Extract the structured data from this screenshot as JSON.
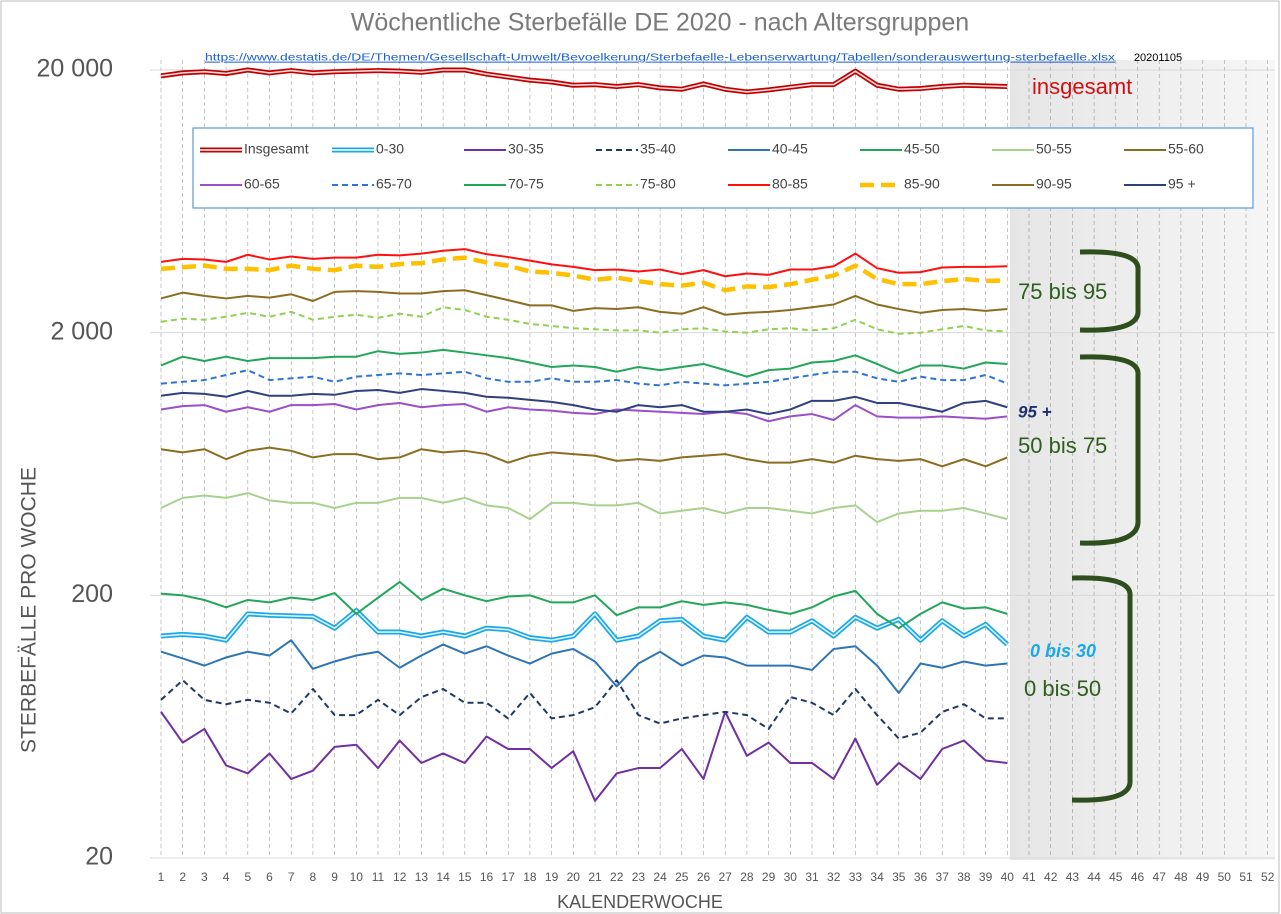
{
  "chart_data": {
    "type": "line",
    "title": "Wöchentliche Sterbefälle DE 2020 - nach Altersgruppen",
    "source": "https://www.destatis.de/DE/Themen/Gesellschaft-Umwelt/Bevoelkerung/Sterbefaelle-Lebenserwartung/Tabellen/sonderauswertung-sterbefaelle.xlsx",
    "date": "20201105",
    "x_label": "KALENDERWOCHE",
    "y_label": "STERBEFÄLLE PRO WOCHE",
    "log_scale": true,
    "grid": true,
    "ylim": [
      20,
      20000
    ],
    "yticks": [
      20,
      200,
      {
        "value": 2000,
        "label": "2 000"
      },
      {
        "value": 20000,
        "label": "20 000"
      }
    ],
    "categories": [
      1,
      2,
      3,
      4,
      5,
      6,
      7,
      8,
      9,
      10,
      11,
      12,
      13,
      14,
      15,
      16,
      17,
      18,
      19,
      20,
      21,
      22,
      23,
      24,
      25,
      26,
      27,
      28,
      29,
      30,
      31,
      32,
      33,
      34,
      35,
      36,
      37,
      38,
      39,
      40,
      41,
      42,
      43,
      44,
      45,
      46,
      47,
      48,
      49,
      50,
      51,
      52
    ],
    "annotations": [
      {
        "text": "insgesamt",
        "color": "#d01010"
      },
      {
        "text": "75 bis 95",
        "color": "#2e5e1e"
      },
      {
        "text": "95 +",
        "color": "#1f2f6f"
      },
      {
        "text": "50 bis 75",
        "color": "#2e5e1e"
      },
      {
        "text": "0 bis 30",
        "color": "#1aa8e8"
      },
      {
        "text": "0 bis 50",
        "color": "#2e5e1e"
      }
    ],
    "series": [
      {
        "name": "Insgesamt",
        "color": "#c00000",
        "double": true,
        "values": [
          19000,
          19500,
          19700,
          19400,
          20000,
          19500,
          19900,
          19500,
          19700,
          19800,
          19900,
          19800,
          19600,
          20000,
          20000,
          19300,
          18800,
          18300,
          18000,
          17500,
          17600,
          17300,
          17600,
          17100,
          16900,
          17700,
          16900,
          16500,
          16800,
          17200,
          17600,
          17600,
          19800,
          17500,
          16900,
          17000,
          17300,
          17500,
          17400,
          17300,
          null,
          null,
          null,
          null,
          null,
          null,
          null,
          null,
          null,
          null,
          null,
          null
        ]
      },
      {
        "name": "0-30",
        "color": "#1aa8e8",
        "double": true,
        "values": [
          140,
          142,
          140,
          135,
          170,
          168,
          167,
          166,
          150,
          175,
          145,
          145,
          140,
          145,
          140,
          150,
          148,
          138,
          135,
          140,
          170,
          135,
          140,
          160,
          162,
          140,
          135,
          165,
          145,
          145,
          160,
          140,
          165,
          150,
          162,
          135,
          160,
          140,
          155,
          130,
          null,
          null,
          null,
          null,
          null,
          null,
          null,
          null,
          null,
          null,
          null,
          null
        ]
      },
      {
        "name": "30-35",
        "color": "#7030a0",
        "values": [
          72,
          55,
          62,
          45,
          42,
          50,
          40,
          43,
          53,
          54,
          44,
          56,
          46,
          50,
          46,
          58,
          52,
          52,
          44,
          51,
          33,
          42,
          44,
          44,
          52,
          40,
          72,
          49,
          55,
          46,
          46,
          40,
          57,
          38,
          46,
          40,
          52,
          56,
          47,
          46,
          null,
          null,
          null,
          null,
          null,
          null,
          null,
          null,
          null,
          null,
          null,
          null
        ]
      },
      {
        "name": "35-40",
        "color": "#1f3864",
        "dashed": true,
        "values": [
          80,
          95,
          80,
          77,
          80,
          78,
          71,
          88,
          70,
          70,
          80,
          70,
          82,
          88,
          78,
          78,
          68,
          85,
          68,
          70,
          75,
          95,
          70,
          65,
          68,
          70,
          72,
          70,
          62,
          82,
          78,
          70,
          88,
          70,
          57,
          60,
          72,
          77,
          68,
          68,
          null,
          null,
          null,
          null,
          null,
          null,
          null,
          null,
          null,
          null,
          null,
          null
        ]
      },
      {
        "name": "40-45",
        "color": "#2e75b6",
        "values": [
          122,
          115,
          108,
          116,
          122,
          118,
          135,
          105,
          112,
          118,
          122,
          106,
          118,
          130,
          120,
          128,
          118,
          110,
          120,
          125,
          112,
          90,
          110,
          122,
          108,
          118,
          116,
          108,
          108,
          108,
          104,
          125,
          128,
          108,
          85,
          110,
          106,
          112,
          108,
          110,
          null,
          null,
          null,
          null,
          null,
          null,
          null,
          null,
          null,
          null,
          null,
          null
        ]
      },
      {
        "name": "45-50",
        "color": "#21a65a",
        "values": [
          203,
          200,
          192,
          180,
          192,
          188,
          196,
          192,
          204,
          170,
          196,
          225,
          192,
          212,
          200,
          190,
          198,
          200,
          188,
          188,
          200,
          168,
          180,
          180,
          190,
          184,
          188,
          184,
          176,
          170,
          180,
          198,
          208,
          170,
          150,
          170,
          188,
          178,
          180,
          170,
          null,
          null,
          null,
          null,
          null,
          null,
          null,
          null,
          null,
          null,
          null,
          null
        ]
      },
      {
        "name": "50-55",
        "color": "#a9d18e",
        "values": [
          430,
          470,
          480,
          470,
          490,
          460,
          450,
          450,
          430,
          450,
          450,
          470,
          470,
          450,
          470,
          440,
          430,
          390,
          450,
          450,
          440,
          440,
          450,
          410,
          420,
          430,
          410,
          430,
          430,
          420,
          410,
          430,
          440,
          380,
          410,
          420,
          420,
          430,
          410,
          390,
          null,
          null,
          null,
          null,
          null,
          null,
          null,
          null,
          null,
          null,
          null,
          null
        ]
      },
      {
        "name": "55-60",
        "color": "#8c6d1f",
        "values": [
          720,
          700,
          720,
          660,
          710,
          730,
          710,
          670,
          690,
          690,
          660,
          670,
          720,
          700,
          710,
          690,
          640,
          680,
          700,
          690,
          680,
          650,
          660,
          650,
          670,
          680,
          690,
          660,
          640,
          640,
          660,
          640,
          680,
          660,
          650,
          660,
          620,
          660,
          620,
          670,
          null,
          null,
          null,
          null,
          null,
          null,
          null,
          null,
          null,
          null,
          null,
          null
        ]
      },
      {
        "name": "60-65",
        "color": "#9b4fc8",
        "values": [
          1020,
          1050,
          1060,
          1000,
          1040,
          1000,
          1060,
          1060,
          1070,
          1020,
          1060,
          1080,
          1040,
          1060,
          1070,
          1000,
          1040,
          1020,
          1010,
          990,
          980,
          1020,
          1010,
          1000,
          990,
          980,
          1000,
          980,
          920,
          960,
          980,
          930,
          1060,
          960,
          950,
          950,
          960,
          950,
          940,
          960,
          null,
          null,
          null,
          null,
          null,
          null,
          null,
          null,
          null,
          null,
          null,
          null
        ]
      },
      {
        "name": "65-70",
        "color": "#2e75d6",
        "dashed": true,
        "values": [
          1280,
          1300,
          1320,
          1380,
          1440,
          1320,
          1340,
          1360,
          1300,
          1360,
          1380,
          1400,
          1380,
          1400,
          1420,
          1340,
          1300,
          1300,
          1340,
          1300,
          1300,
          1320,
          1280,
          1260,
          1300,
          1280,
          1260,
          1280,
          1300,
          1340,
          1380,
          1420,
          1420,
          1340,
          1300,
          1360,
          1320,
          1320,
          1380,
          1280,
          null,
          null,
          null,
          null,
          null,
          null,
          null,
          null,
          null,
          null,
          null,
          null
        ]
      },
      {
        "name": "70-75",
        "color": "#21a65a",
        "values": [
          1500,
          1620,
          1560,
          1620,
          1560,
          1600,
          1600,
          1600,
          1620,
          1620,
          1700,
          1660,
          1680,
          1720,
          1680,
          1640,
          1600,
          1540,
          1480,
          1500,
          1480,
          1420,
          1480,
          1440,
          1480,
          1520,
          1440,
          1360,
          1440,
          1460,
          1540,
          1560,
          1640,
          1520,
          1400,
          1500,
          1500,
          1460,
          1540,
          1520,
          null,
          null,
          null,
          null,
          null,
          null,
          null,
          null,
          null,
          null,
          null,
          null
        ]
      },
      {
        "name": "75-80",
        "color": "#92d050",
        "dashed": true,
        "values": [
          2200,
          2260,
          2240,
          2300,
          2380,
          2300,
          2400,
          2240,
          2300,
          2340,
          2280,
          2360,
          2300,
          2500,
          2440,
          2300,
          2240,
          2160,
          2120,
          2080,
          2060,
          2040,
          2040,
          2000,
          2060,
          2080,
          2020,
          2000,
          2060,
          2080,
          2040,
          2080,
          2240,
          2060,
          1980,
          2000,
          2060,
          2120,
          2040,
          2020,
          null,
          null,
          null,
          null,
          null,
          null,
          null,
          null,
          null,
          null,
          null,
          null
        ]
      },
      {
        "name": "80-85",
        "color": "#ff1010",
        "values": [
          3720,
          3820,
          3800,
          3720,
          3960,
          3800,
          3900,
          3820,
          3860,
          3860,
          3960,
          3940,
          4000,
          4100,
          4160,
          3980,
          3880,
          3760,
          3640,
          3560,
          3460,
          3480,
          3420,
          3480,
          3340,
          3460,
          3280,
          3360,
          3320,
          3480,
          3480,
          3580,
          4000,
          3520,
          3380,
          3400,
          3540,
          3560,
          3560,
          3580,
          null,
          null,
          null,
          null,
          null,
          null,
          null,
          null,
          null,
          null,
          null,
          null
        ]
      },
      {
        "name": "85-90",
        "color": "#ffc000",
        "dashed": true,
        "thick": true,
        "values": [
          3500,
          3550,
          3600,
          3500,
          3500,
          3460,
          3600,
          3500,
          3460,
          3600,
          3560,
          3650,
          3680,
          3800,
          3860,
          3700,
          3600,
          3420,
          3380,
          3300,
          3180,
          3240,
          3140,
          3060,
          3020,
          3100,
          2900,
          3000,
          2980,
          3060,
          3180,
          3300,
          3600,
          3200,
          3060,
          3060,
          3140,
          3200,
          3150,
          3160,
          null,
          null,
          null,
          null,
          null,
          null,
          null,
          null,
          null,
          null,
          null,
          null
        ]
      },
      {
        "name": "90-95",
        "color": "#8c6d1f",
        "values": [
          2700,
          2840,
          2760,
          2700,
          2760,
          2720,
          2800,
          2640,
          2860,
          2880,
          2860,
          2820,
          2820,
          2880,
          2900,
          2780,
          2660,
          2540,
          2540,
          2420,
          2480,
          2460,
          2500,
          2400,
          2360,
          2500,
          2340,
          2380,
          2400,
          2440,
          2500,
          2560,
          2760,
          2560,
          2460,
          2380,
          2440,
          2460,
          2420,
          2460,
          null,
          null,
          null,
          null,
          null,
          null,
          null,
          null,
          null,
          null,
          null,
          null
        ]
      },
      {
        "name": "95 +",
        "color": "#2f3f7f",
        "values": [
          1150,
          1180,
          1170,
          1140,
          1200,
          1150,
          1150,
          1170,
          1160,
          1200,
          1210,
          1180,
          1220,
          1200,
          1180,
          1140,
          1130,
          1110,
          1090,
          1060,
          1020,
          1000,
          1060,
          1040,
          1060,
          1000,
          1000,
          1020,
          980,
          1020,
          1100,
          1100,
          1140,
          1080,
          1080,
          1040,
          1000,
          1080,
          1100,
          1040,
          null,
          null,
          null,
          null,
          null,
          null,
          null,
          null,
          null,
          null,
          null,
          null
        ]
      }
    ]
  }
}
